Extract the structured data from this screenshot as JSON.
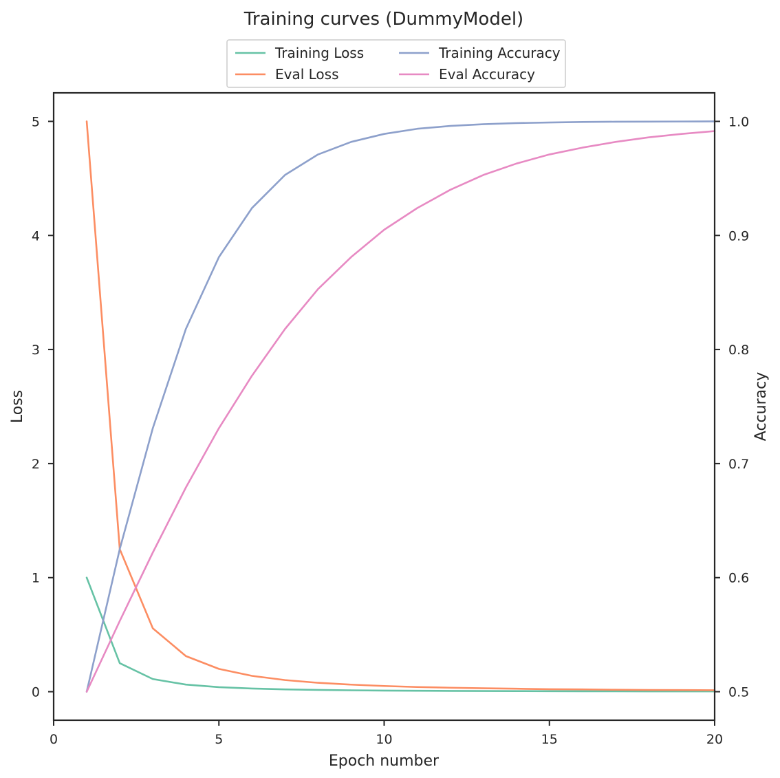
{
  "chart_data": {
    "type": "line",
    "title": "Training curves (DummyModel)",
    "xlabel": "Epoch number",
    "ylabel_left": "Loss",
    "ylabel_right": "Accuracy",
    "xlim": [
      0,
      20
    ],
    "ylim_left": [
      -0.25,
      5.25
    ],
    "ylim_right": [
      0.475,
      1.025
    ],
    "x_ticks": [
      0,
      5,
      10,
      15,
      20
    ],
    "y_left_ticks": [
      0,
      1,
      2,
      3,
      4,
      5
    ],
    "y_right_ticks": [
      0.5,
      0.6,
      0.7,
      0.8,
      0.9,
      1.0
    ],
    "y_right_tick_labels": [
      "0.5",
      "0.6",
      "0.7",
      "0.8",
      "0.9",
      "1.0"
    ],
    "grid": false,
    "legend_position": "top-center",
    "x": [
      1,
      2,
      3,
      4,
      5,
      6,
      7,
      8,
      9,
      10,
      11,
      12,
      13,
      14,
      15,
      16,
      17,
      18,
      19,
      20
    ],
    "series": [
      {
        "name": "Training Loss",
        "axis": "left",
        "color": "#66c2a5",
        "values": [
          1.0,
          0.25,
          0.111,
          0.0625,
          0.04,
          0.0278,
          0.0204,
          0.0156,
          0.0123,
          0.01,
          0.0083,
          0.0069,
          0.0059,
          0.0051,
          0.0044,
          0.0039,
          0.0035,
          0.0031,
          0.0028,
          0.0025
        ]
      },
      {
        "name": "Eval Loss",
        "axis": "left",
        "color": "#fc8d62",
        "values": [
          5.0,
          1.25,
          0.556,
          0.3125,
          0.2,
          0.139,
          0.102,
          0.078,
          0.062,
          0.05,
          0.041,
          0.035,
          0.03,
          0.026,
          0.022,
          0.02,
          0.017,
          0.015,
          0.014,
          0.0125
        ]
      },
      {
        "name": "Training Accuracy",
        "axis": "right",
        "color": "#8da0cb",
        "values": [
          0.5,
          0.625,
          0.731,
          0.818,
          0.881,
          0.924,
          0.953,
          0.971,
          0.982,
          0.989,
          0.9935,
          0.996,
          0.9975,
          0.9985,
          0.999,
          0.9995,
          0.9997,
          0.9998,
          0.9999,
          1.0
        ]
      },
      {
        "name": "Eval Accuracy",
        "axis": "right",
        "color": "#e78ac3",
        "values": [
          0.5,
          0.562,
          0.622,
          0.679,
          0.731,
          0.777,
          0.818,
          0.853,
          0.881,
          0.905,
          0.924,
          0.94,
          0.953,
          0.963,
          0.971,
          0.977,
          0.982,
          0.986,
          0.989,
          0.9915
        ]
      }
    ]
  }
}
